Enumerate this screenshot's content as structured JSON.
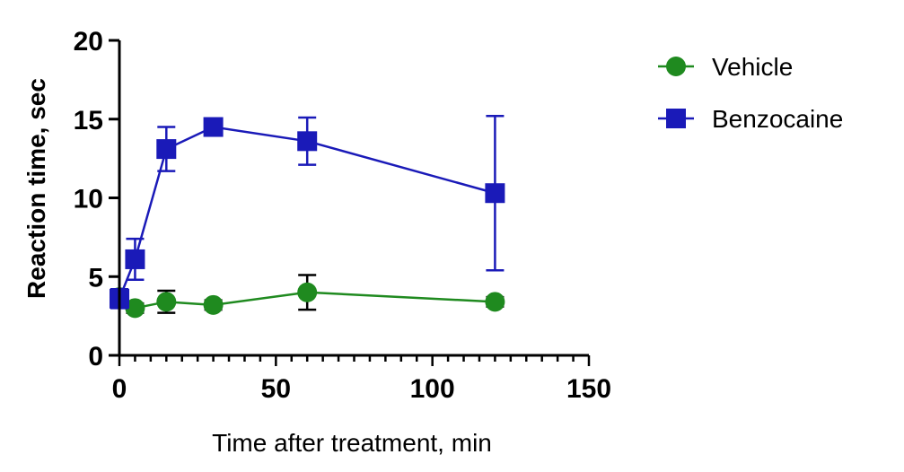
{
  "chart_data": {
    "type": "line",
    "xlabel": "Time after treatment, min",
    "ylabel": "Reaction time, sec",
    "xlim": [
      0,
      150
    ],
    "ylim": [
      0,
      20
    ],
    "xticks": [
      0,
      50,
      100,
      150
    ],
    "yticks": [
      0,
      5,
      10,
      15,
      20
    ],
    "x_minor_tick_step": 5,
    "grid": false,
    "legend_position": "right",
    "series": [
      {
        "name": "Vehicle",
        "color": "#1f8a1f",
        "marker": "circle",
        "points": [
          {
            "x": 0,
            "y": 3.7,
            "err": 0.5
          },
          {
            "x": 5,
            "y": 3.0,
            "err": 0.3
          },
          {
            "x": 15,
            "y": 3.4,
            "err": 0.7
          },
          {
            "x": 30,
            "y": 3.2,
            "err": 0.3
          },
          {
            "x": 60,
            "y": 4.0,
            "err": 1.1
          },
          {
            "x": 120,
            "y": 3.4,
            "err": 0.3
          }
        ]
      },
      {
        "name": "Benzocaine",
        "color": "#1a1ab8",
        "marker": "square",
        "points": [
          {
            "x": 0,
            "y": 3.6,
            "err": 0.6
          },
          {
            "x": 5,
            "y": 6.1,
            "err": 1.3
          },
          {
            "x": 15,
            "y": 13.1,
            "err": 1.4
          },
          {
            "x": 30,
            "y": 14.5,
            "err": 0.3
          },
          {
            "x": 60,
            "y": 13.6,
            "err": 1.5
          },
          {
            "x": 120,
            "y": 10.3,
            "err": 4.9
          }
        ]
      }
    ]
  }
}
